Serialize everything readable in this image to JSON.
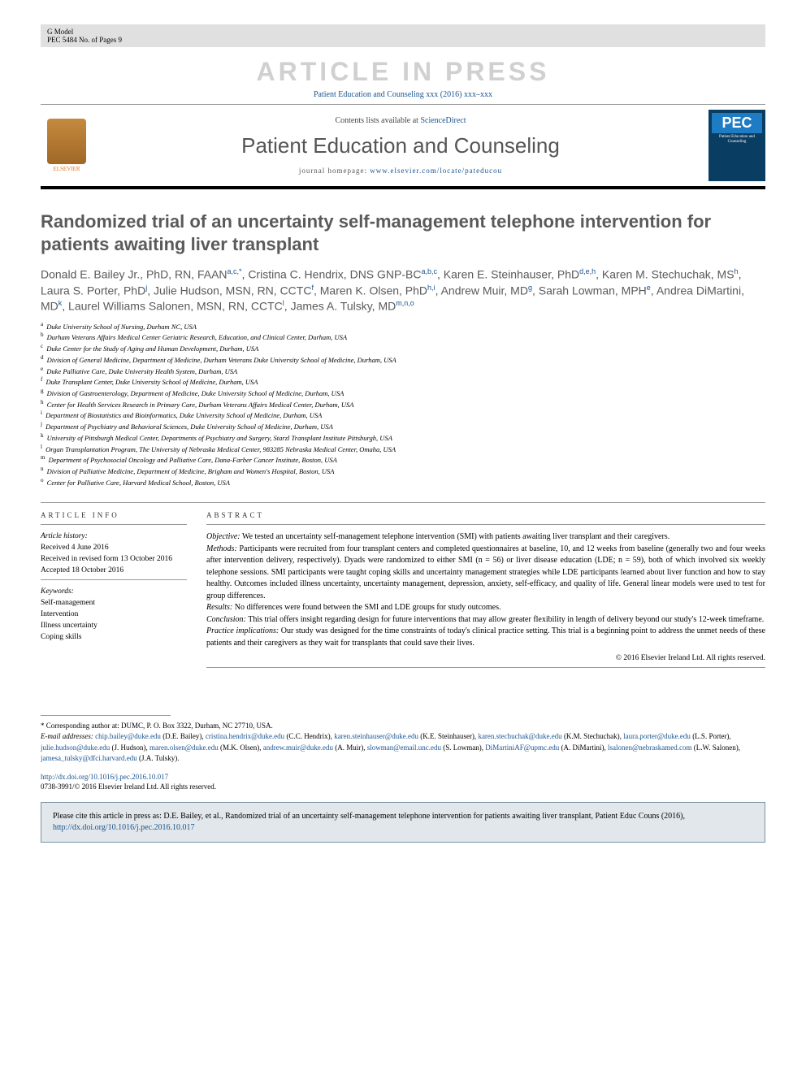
{
  "topbar": {
    "model": "G Model",
    "ref": "PEC 5484 No. of Pages 9"
  },
  "watermark": "ARTICLE IN PRESS",
  "citation_banner": "Patient Education and Counseling xxx (2016) xxx–xxx",
  "header": {
    "contents_prefix": "Contents lists available at ",
    "contents_link": "ScienceDirect",
    "journal": "Patient Education and Counseling",
    "homepage_prefix": "journal homepage: ",
    "homepage_url": "www.elsevier.com/locate/pateducou",
    "publisher": "ELSEVIER",
    "cover_abbrev": "PEC",
    "cover_subtitle": "Patient Education and Counseling"
  },
  "title": "Randomized trial of an uncertainty self-management telephone intervention for patients awaiting liver transplant",
  "authors_html": "Donald E. Bailey Jr., PhD, RN, FAAN<sup>a,c,*</sup>, Cristina C. Hendrix, DNS GNP-BC<sup>a,b,c</sup>, Karen E. Steinhauser, PhD<sup>d,e,h</sup>, Karen M. Stechuchak, MS<sup>h</sup>, Laura S. Porter, PhD<sup>j</sup>, Julie Hudson, MSN, RN, CCTC<sup>f</sup>, Maren K. Olsen, PhD<sup>h,i</sup>, Andrew Muir, MD<sup>g</sup>, Sarah Lowman, MPH<sup>e</sup>, Andrea DiMartini, MD<sup>k</sup>, Laurel Williams Salonen, MSN, RN, CCTC<sup>l</sup>, James A. Tulsky, MD<sup>m,n,o</sup>",
  "affiliations": [
    {
      "sup": "a",
      "text": "Duke University School of Nursing, Durham NC, USA"
    },
    {
      "sup": "b",
      "text": "Durham Veterans Affairs Medical Center Geriatric Research, Education, and Clinical Center, Durham, USA"
    },
    {
      "sup": "c",
      "text": "Duke Center for the Study of Aging and Human Development, Durham, USA"
    },
    {
      "sup": "d",
      "text": "Division of General Medicine, Department of Medicine, Durham Veterans Duke University School of Medicine, Durham, USA"
    },
    {
      "sup": "e",
      "text": "Duke Palliative Care, Duke University Health System, Durham, USA"
    },
    {
      "sup": "f",
      "text": "Duke Transplant Center, Duke University School of Medicine, Durham, USA"
    },
    {
      "sup": "g",
      "text": "Division of Gastroenterology, Department of Medicine, Duke University School of Medicine, Durham, USA"
    },
    {
      "sup": "h",
      "text": "Center for Health Services Research in Primary Care, Durham Veterans Affairs Medical Center, Durham, USA"
    },
    {
      "sup": "i",
      "text": "Department of Biostatistics and Bioinformatics, Duke University School of Medicine, Durham, USA"
    },
    {
      "sup": "j",
      "text": "Department of Psychiatry and Behavioral Sciences, Duke University School of Medicine, Durham, USA"
    },
    {
      "sup": "k",
      "text": "University of Pittsburgh Medical Center, Departments of Psychiatry and Surgery, Starzl Transplant Institute Pittsburgh, USA"
    },
    {
      "sup": "l",
      "text": "Organ Transplantation Program, The University of Nebraska Medical Center, 983285 Nebraska Medical Center, Omaha, USA"
    },
    {
      "sup": "m",
      "text": "Department of Psychosocial Oncology and Palliative Care, Dana-Farber Cancer Institute, Boston, USA"
    },
    {
      "sup": "n",
      "text": "Division of Palliative Medicine, Department of Medicine, Brigham and Women's Hospital, Boston, USA"
    },
    {
      "sup": "o",
      "text": "Center for Palliative Care, Harvard Medical School, Boston, USA"
    }
  ],
  "article_info": {
    "heading": "ARTICLE INFO",
    "history_label": "Article history:",
    "received": "Received 4 June 2016",
    "revised": "Received in revised form 13 October 2016",
    "accepted": "Accepted 18 October 2016",
    "keywords_label": "Keywords:",
    "keywords": [
      "Self-management",
      "Intervention",
      "Illness uncertainty",
      "Coping skills"
    ]
  },
  "abstract": {
    "heading": "ABSTRACT",
    "sections": [
      {
        "label": "Objective:",
        "text": "We tested an uncertainty self-management telephone intervention (SMI) with patients awaiting liver transplant and their caregivers."
      },
      {
        "label": "Methods:",
        "text": "Participants were recruited from four transplant centers and completed questionnaires at baseline, 10, and 12 weeks from baseline (generally two and four weeks after intervention delivery, respectively). Dyads were randomized to either SMI (n = 56) or liver disease education (LDE; n = 59), both of which involved six weekly telephone sessions. SMI participants were taught coping skills and uncertainty management strategies while LDE participants learned about liver function and how to stay healthy. Outcomes included illness uncertainty, uncertainty management, depression, anxiety, self-efficacy, and quality of life. General linear models were used to test for group differences."
      },
      {
        "label": "Results:",
        "text": "No differences were found between the SMI and LDE groups for study outcomes."
      },
      {
        "label": "Conclusion:",
        "text": "This trial offers insight regarding design for future interventions that may allow greater flexibility in length of delivery beyond our study's 12-week timeframe."
      },
      {
        "label": "Practice implications:",
        "text": "Our study was designed for the time constraints of today's clinical practice setting. This trial is a beginning point to address the unmet needs of these patients and their caregivers as they wait for transplants that could save their lives."
      }
    ],
    "copyright": "© 2016 Elsevier Ireland Ltd. All rights reserved."
  },
  "corresponding": {
    "star_note": "* Corresponding author at: DUMC, P. O. Box 3322, Durham, NC 27710, USA.",
    "email_label": "E-mail addresses:",
    "emails": [
      {
        "addr": "chip.bailey@duke.edu",
        "who": "(D.E. Bailey)"
      },
      {
        "addr": "cristina.hendrix@duke.edu",
        "who": "(C.C. Hendrix)"
      },
      {
        "addr": "karen.steinhauser@duke.edu",
        "who": "(K.E. Steinhauser)"
      },
      {
        "addr": "karen.stechuchak@duke.edu",
        "who": "(K.M. Stechuchak)"
      },
      {
        "addr": "laura.porter@duke.edu",
        "who": "(L.S. Porter)"
      },
      {
        "addr": "julie.hudson@duke.edu",
        "who": "(J. Hudson)"
      },
      {
        "addr": "maren.olsen@duke.edu",
        "who": "(M.K. Olsen)"
      },
      {
        "addr": "andrew.muir@duke.edu",
        "who": "(A. Muir)"
      },
      {
        "addr": "slowman@email.unc.edu",
        "who": "(S. Lowman)"
      },
      {
        "addr": "DiMartiniAF@upmc.edu",
        "who": "(A. DiMartini)"
      },
      {
        "addr": "lsalonen@nebraskamed.com",
        "who": "(L.W. Salonen)"
      },
      {
        "addr": "jamesa_tulsky@dfci.harvard.edu",
        "who": "(J.A. Tulsky)"
      }
    ]
  },
  "doi": {
    "url": "http://dx.doi.org/10.1016/j.pec.2016.10.017",
    "issn_line": "0738-3991/© 2016 Elsevier Ireland Ltd. All rights reserved."
  },
  "cite_box": {
    "prefix": "Please cite this article in press as: D.E. Bailey, et al., Randomized trial of an uncertainty self-management telephone intervention for patients awaiting liver transplant, Patient Educ Couns (2016), ",
    "url": "http://dx.doi.org/10.1016/j.pec.2016.10.017"
  },
  "colors": {
    "link": "#1a5490",
    "watermark": "#d0d0d0",
    "topbar_bg": "#e0e0e0",
    "citebox_bg": "#e2e7eb",
    "citebox_border": "#7a95a8",
    "heading_grey": "#5a5a5a"
  }
}
